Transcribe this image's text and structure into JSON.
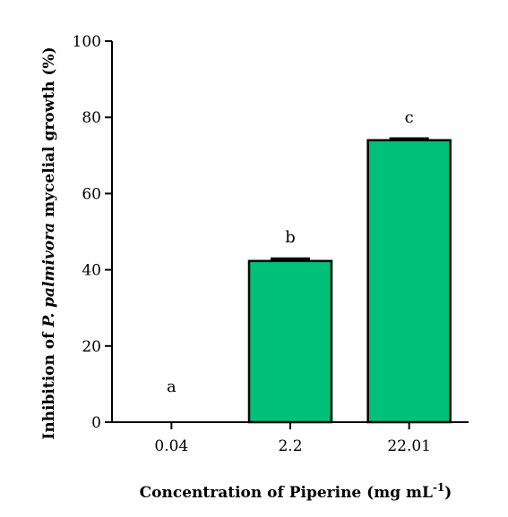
{
  "chart_data": {
    "type": "bar",
    "categories": [
      "0.04",
      "2.2",
      "22.01"
    ],
    "values": [
      0,
      42.3,
      74.0
    ],
    "errors": [
      0,
      0.6,
      0.4
    ],
    "group_letters": [
      "a",
      "b",
      "c"
    ],
    "xlabel": {
      "prefix": "Concentration of Piperine (mg mL",
      "superscript": "-1",
      "suffix": ")"
    },
    "ylabel": {
      "prefix": "Inhibition of ",
      "italic": "P. palmivora",
      "suffix": " mycelial growth (%)"
    },
    "ylim": [
      0,
      100
    ],
    "yticks": [
      0,
      20,
      40,
      60,
      80,
      100
    ],
    "bar_color": "#00c07a",
    "grid": false,
    "legend": "none"
  }
}
